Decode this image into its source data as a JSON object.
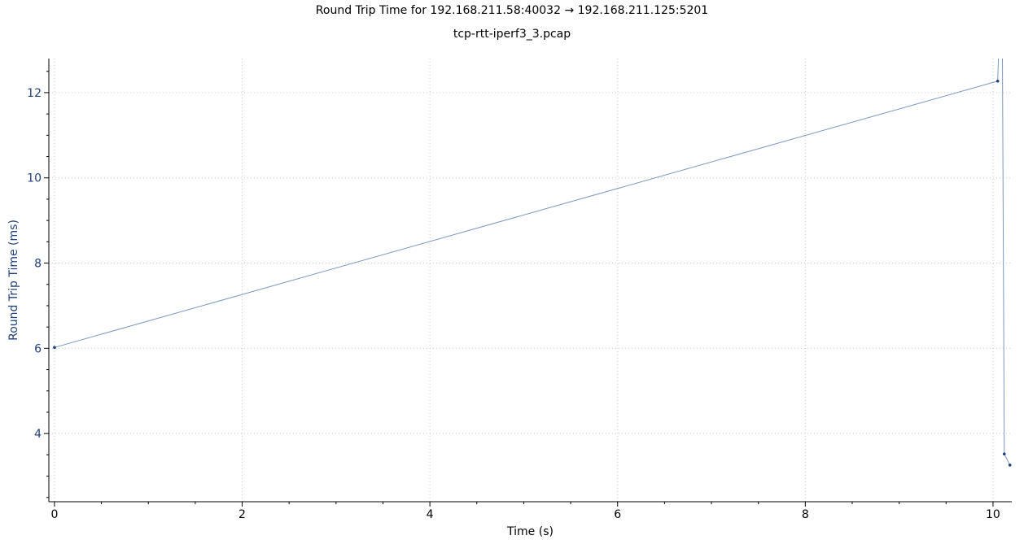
{
  "header": {
    "title": "Round Trip Time for 192.168.211.58:40032 → 192.168.211.125:5201",
    "subtitle": "tcp-rtt-iperf3_3.pcap"
  },
  "colors": {
    "series": "#7b97c0",
    "marker": "#1f3f7a",
    "ylabel": "#1f3f7a",
    "grid": "#c8c8c8",
    "axis": "#000000"
  },
  "chart_data": {
    "type": "line",
    "title": "Round Trip Time for 192.168.211.58:40032 → 192.168.211.125:5201",
    "subtitle": "tcp-rtt-iperf3_3.pcap",
    "xlabel": "Time (s)",
    "ylabel": "Round Trip Time (ms)",
    "xlim": [
      -0.06,
      10.2
    ],
    "ylim": [
      2.4,
      12.8
    ],
    "x_ticks": [
      0,
      2,
      4,
      6,
      8,
      10
    ],
    "y_ticks": [
      4,
      6,
      8,
      10,
      12
    ],
    "grid": true,
    "series": [
      {
        "points": [
          {
            "x": 0.0,
            "y": 6.02,
            "marker": true
          },
          {
            "x": 10.05,
            "y": 12.27,
            "marker": true
          },
          {
            "x": 10.06,
            "y": 12.8,
            "marker": false,
            "offscale": true
          },
          {
            "x": 10.1,
            "y": 12.8,
            "marker": false,
            "offscale": true
          },
          {
            "x": 10.12,
            "y": 3.52,
            "marker": true
          },
          {
            "x": 10.18,
            "y": 3.26,
            "marker": true
          }
        ]
      }
    ]
  }
}
